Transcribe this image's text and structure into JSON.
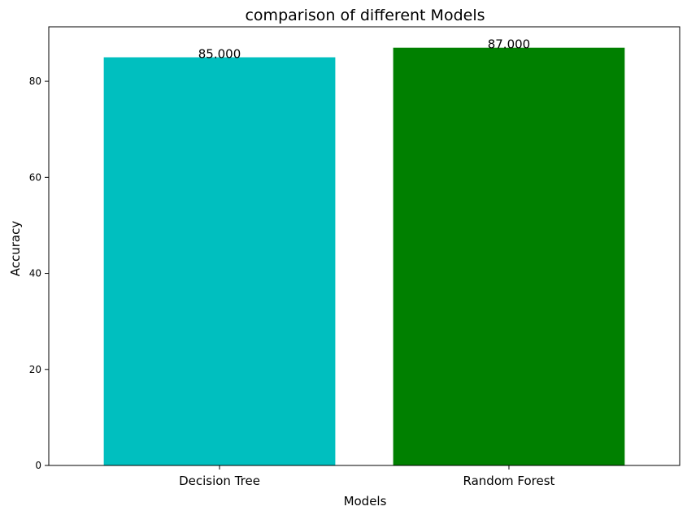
{
  "chart_data": {
    "type": "bar",
    "title": "comparison of different Models",
    "xlabel": "Models",
    "ylabel": "Accuracy",
    "categories": [
      "Decision Tree",
      "Random Forest"
    ],
    "values": [
      85,
      87
    ],
    "value_labels": [
      "85.000",
      "87.000"
    ],
    "colors": [
      "#00bfbf",
      "#008000"
    ],
    "ylim": [
      0,
      91.35
    ],
    "yticks": [
      0,
      20,
      40,
      60,
      80
    ],
    "grid": false,
    "legend": "none"
  }
}
